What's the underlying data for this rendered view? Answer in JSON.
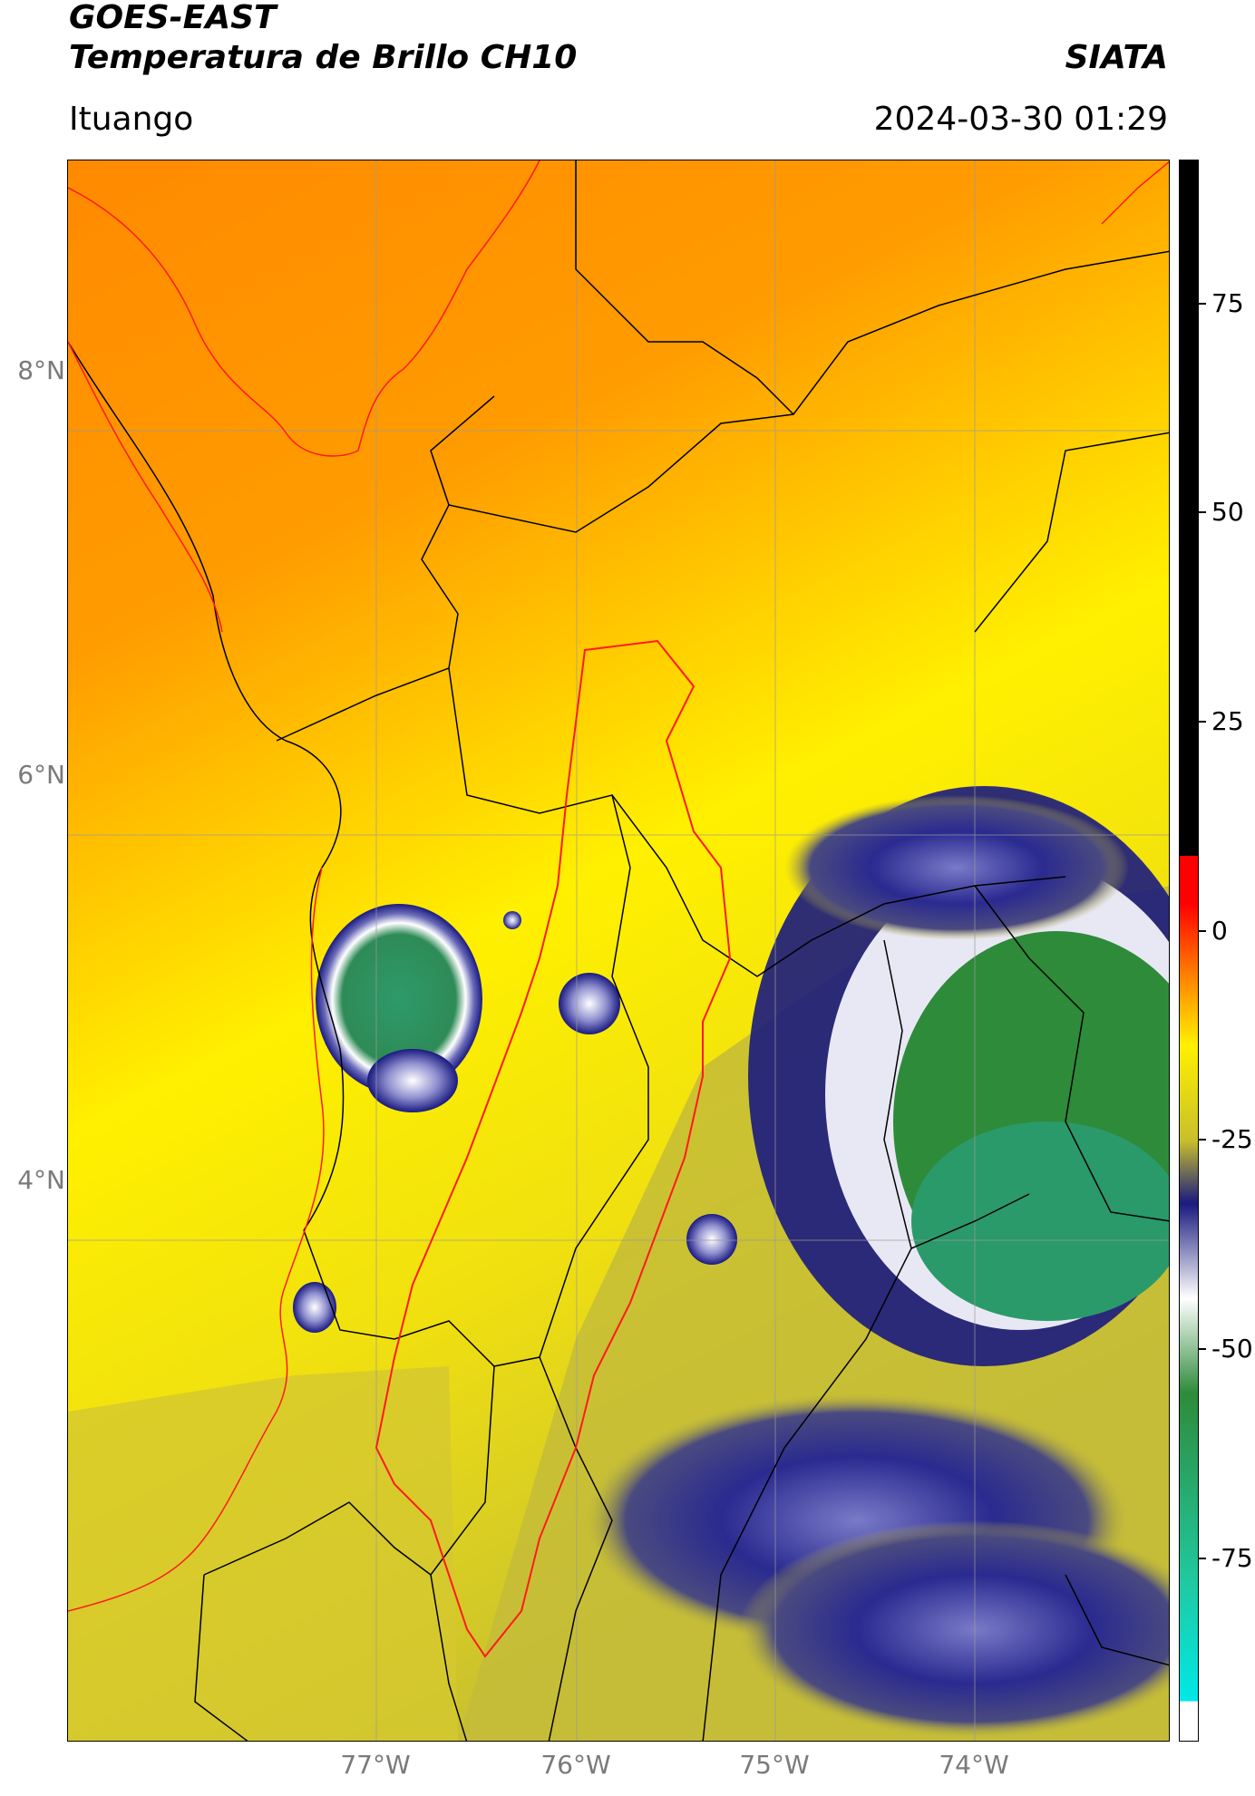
{
  "header": {
    "title_line1": "GOES-EAST",
    "title_line2": "Temperatura de Brillo CH10",
    "brand": "SIATA",
    "region": "Ituango",
    "timestamp": "2024-03-30 01:29"
  },
  "map": {
    "lat_labels": [
      "8°N",
      "6°N",
      "4°N"
    ],
    "lon_labels": [
      "77°W",
      "76°W",
      "75°W",
      "74°W"
    ],
    "border_colors": {
      "admin": "#000000",
      "basin": "#ff1a1a",
      "grid": "#9a9a9a"
    }
  },
  "colorbar": {
    "ticks": [
      "75",
      "50",
      "25",
      "0",
      "-25",
      "-50",
      "-75"
    ],
    "colors": {
      "warm_top": "#000000",
      "hot": "#ff0000",
      "orange": "#ff8c00",
      "yellow": "#fff000",
      "olive": "#c8c02a",
      "navy": "#1a1a80",
      "white": "#ffffff",
      "green": "#2e8b3a",
      "teal": "#20c9a0",
      "cyan": "#00e8e8"
    }
  }
}
